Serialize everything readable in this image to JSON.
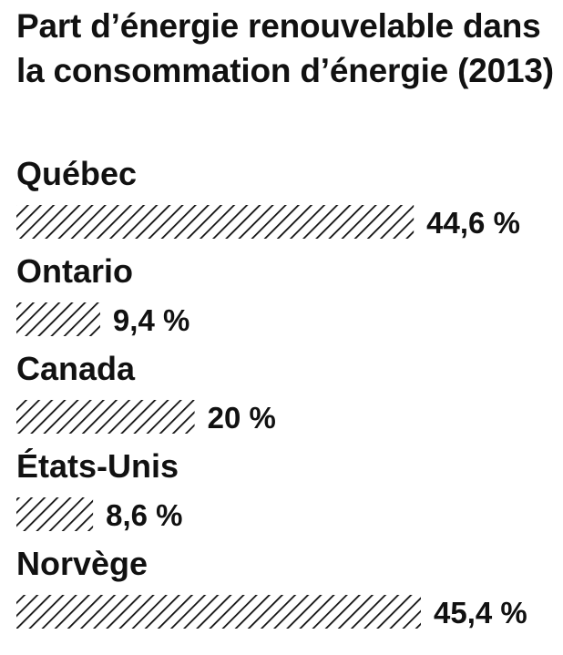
{
  "chart_data": {
    "type": "bar",
    "orientation": "horizontal",
    "title": "Part d’énergie renouvelable dans la consommation d’énergie (2013)",
    "categories": [
      "Québec",
      "Ontario",
      "Canada",
      "États-Unis",
      "Norvège"
    ],
    "values": [
      44.6,
      9.4,
      20,
      8.6,
      45.4
    ],
    "value_labels": [
      "44,6 %",
      "9,4 %",
      "20 %",
      "8,6 %",
      "45,4 %"
    ],
    "unit": "%",
    "xlabel": "",
    "ylabel": "",
    "xlim": [
      0,
      45.4
    ],
    "grid": false,
    "legend": "none",
    "bar_fill": "diagonal-hatch",
    "colors": {
      "bar_stroke": "#111111",
      "text": "#111111",
      "background": "#ffffff"
    }
  }
}
